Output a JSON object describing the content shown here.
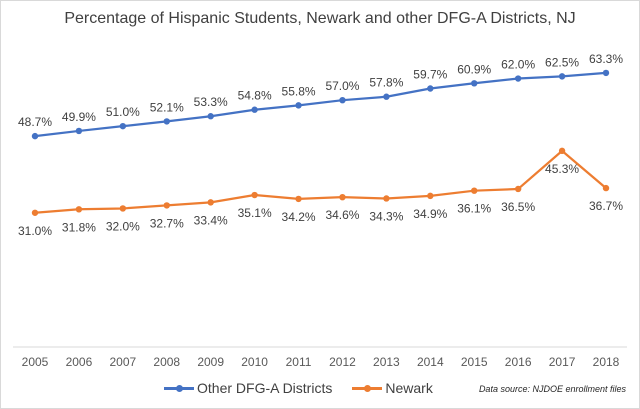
{
  "chart_data": {
    "type": "line",
    "title": "Percentage of Hispanic Students, Newark and other DFG-A Districts, NJ",
    "xlabel": "",
    "ylabel": "",
    "categories": [
      "2005",
      "2006",
      "2007",
      "2008",
      "2009",
      "2010",
      "2011",
      "2012",
      "2013",
      "2014",
      "2015",
      "2016",
      "2017",
      "2018"
    ],
    "series": [
      {
        "name": "Other DFG-A Districts",
        "color": "#4472c4",
        "values": [
          48.7,
          49.9,
          51.0,
          52.1,
          53.3,
          54.8,
          55.8,
          57.0,
          57.8,
          59.7,
          60.9,
          62.0,
          62.5,
          63.3
        ],
        "labels": [
          "48.7%",
          "49.9%",
          "51.0%",
          "52.1%",
          "53.3%",
          "54.8%",
          "55.8%",
          "57.0%",
          "57.8%",
          "59.7%",
          "60.9%",
          "62.0%",
          "62.5%",
          "63.3%"
        ],
        "label_position": "above"
      },
      {
        "name": "Newark",
        "color": "#ed7d31",
        "values": [
          31.0,
          31.8,
          32.0,
          32.7,
          33.4,
          35.1,
          34.2,
          34.6,
          34.3,
          34.9,
          36.1,
          36.5,
          45.3,
          36.7
        ],
        "labels": [
          "31.0%",
          "31.8%",
          "32.0%",
          "32.7%",
          "33.4%",
          "35.1%",
          "34.2%",
          "34.6%",
          "34.3%",
          "34.9%",
          "36.1%",
          "36.5%",
          "45.3%",
          "36.7%"
        ],
        "label_position": "below"
      }
    ],
    "ylim": [
      0,
      80
    ],
    "grid": false,
    "legend": "bottom-center",
    "annotation": "Data source: NJDOE enrollment files"
  }
}
